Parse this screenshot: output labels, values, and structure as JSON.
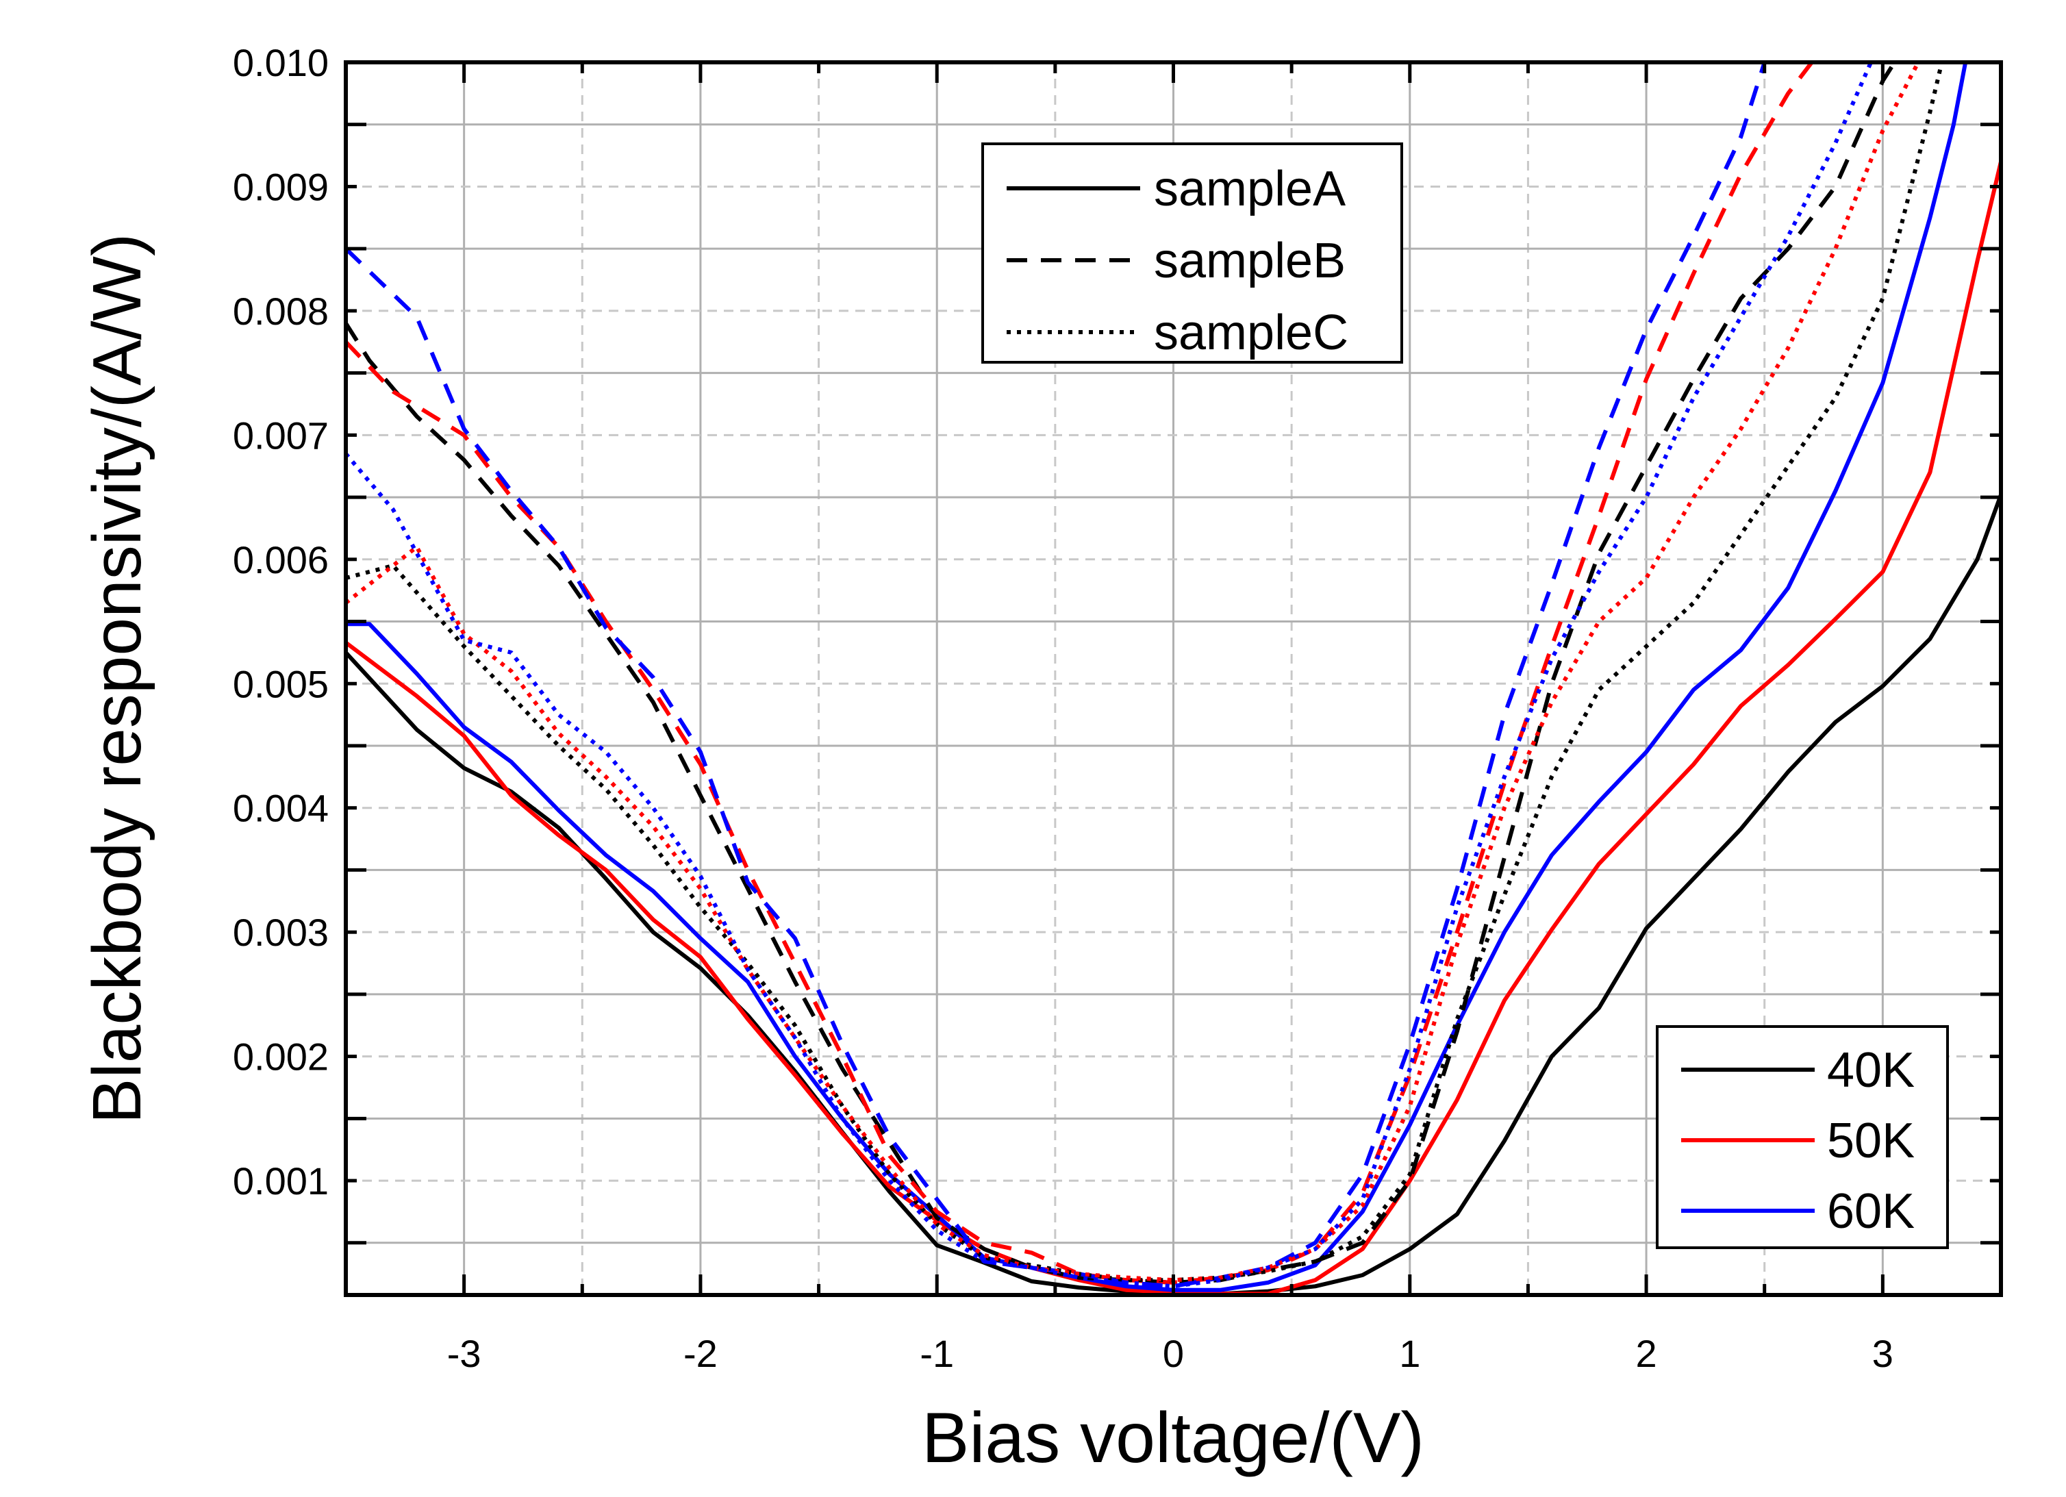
{
  "chart_data": {
    "type": "line",
    "title": "",
    "xlabel": "Bias voltage/(V)",
    "ylabel": "Blackbody responsivity/(A/W)",
    "xlim": [
      -3.5,
      3.5
    ],
    "ylim": [
      8e-05,
      0.01
    ],
    "grid": true,
    "x_ticks": [
      -3,
      -2,
      -1,
      0,
      1,
      2,
      3
    ],
    "x_tick_labels": [
      "-3",
      "-2",
      "-1",
      "0",
      "1",
      "2",
      "3"
    ],
    "y_ticks": [
      0.001,
      0.002,
      0.003,
      0.004,
      0.005,
      0.006,
      0.007,
      0.008,
      0.009,
      0.01
    ],
    "y_tick_labels": [
      "0.001",
      "0.002",
      "0.003",
      "0.004",
      "0.005",
      "0.006",
      "0.007",
      "0.008",
      "0.009",
      "0.010"
    ],
    "legend_style": {
      "position": "top-center",
      "entries": [
        {
          "label": "sampleA",
          "dash": "solid"
        },
        {
          "label": "sampleB",
          "dash": "dashed"
        },
        {
          "label": "sampleC",
          "dash": "dotted"
        }
      ]
    },
    "legend_color": {
      "position": "bottom-right",
      "entries": [
        {
          "label": "40K",
          "color": "#000000"
        },
        {
          "label": "50K",
          "color": "#ff0000"
        },
        {
          "label": "60K",
          "color": "#0000ff"
        }
      ]
    },
    "series": [
      {
        "name": "sampleA 40K",
        "color": "#000000",
        "dash": "solid",
        "x": [
          -3.5,
          -3.2,
          -3,
          -2.8,
          -2.6,
          -2.4,
          -2.2,
          -2,
          -1.8,
          -1.6,
          -1.4,
          -1.2,
          -1,
          -0.8,
          -0.6,
          -0.4,
          -0.2,
          0,
          0.2,
          0.4,
          0.6,
          0.8,
          1,
          1.2,
          1.4,
          1.6,
          1.8,
          2,
          2.2,
          2.4,
          2.6,
          2.8,
          3,
          3.2,
          3.4,
          3.5
        ],
        "y": [
          0.00525,
          0.00463,
          0.00432,
          0.00413,
          0.00384,
          0.00343,
          0.003,
          0.00271,
          0.00233,
          0.00188,
          0.00139,
          0.00091,
          0.00048,
          0.00034,
          0.00019,
          0.00014,
          0.00011,
          0.0001,
          9e-05,
          0.00011,
          0.00015,
          0.00024,
          0.00045,
          0.00073,
          0.00132,
          0.002,
          0.00239,
          0.00303,
          0.00343,
          0.00383,
          0.00429,
          0.00469,
          0.00498,
          0.00536,
          0.006,
          0.00652
        ]
      },
      {
        "name": "sampleA 50K",
        "color": "#ff0000",
        "dash": "solid",
        "x": [
          -3.5,
          -3.2,
          -3,
          -2.8,
          -2.6,
          -2.4,
          -2.2,
          -2,
          -1.8,
          -1.6,
          -1.4,
          -1.2,
          -1,
          -0.8,
          -0.6,
          -0.4,
          -0.2,
          0,
          0.2,
          0.4,
          0.6,
          0.8,
          1,
          1.2,
          1.4,
          1.6,
          1.8,
          2,
          2.2,
          2.4,
          2.6,
          2.8,
          3,
          3.2,
          3.4,
          3.5
        ],
        "y": [
          0.00533,
          0.0049,
          0.00458,
          0.0041,
          0.00378,
          0.0035,
          0.0031,
          0.0028,
          0.0023,
          0.00185,
          0.00138,
          0.00095,
          0.00068,
          0.00045,
          0.0003,
          0.0002,
          0.00012,
          0.0001,
          9e-05,
          9e-05,
          0.0002,
          0.00045,
          0.001,
          0.00165,
          0.00245,
          0.00302,
          0.00355,
          0.00395,
          0.00435,
          0.00482,
          0.00515,
          0.00552,
          0.0059,
          0.0067,
          0.0084,
          0.0092
        ]
      },
      {
        "name": "sampleA 60K",
        "color": "#0000ff",
        "dash": "solid",
        "x": [
          -3.5,
          -3.4,
          -3.2,
          -3,
          -2.8,
          -2.6,
          -2.4,
          -2.2,
          -2,
          -1.8,
          -1.6,
          -1.4,
          -1.2,
          -1,
          -0.8,
          -0.6,
          -0.4,
          -0.2,
          0,
          0.2,
          0.4,
          0.6,
          0.8,
          1,
          1.2,
          1.4,
          1.6,
          1.8,
          2,
          2.2,
          2.4,
          2.6,
          2.8,
          3,
          3.2,
          3.3,
          3.35
        ],
        "y": [
          0.00548,
          0.00548,
          0.00508,
          0.00465,
          0.00437,
          0.00398,
          0.00362,
          0.00333,
          0.00295,
          0.0026,
          0.002,
          0.0015,
          0.00105,
          0.00072,
          0.00038,
          0.0003,
          0.00022,
          0.00015,
          0.00012,
          0.00012,
          0.00018,
          0.00032,
          0.00075,
          0.00145,
          0.00225,
          0.003,
          0.00362,
          0.00405,
          0.00445,
          0.00495,
          0.00527,
          0.00577,
          0.00655,
          0.00742,
          0.00875,
          0.0095,
          0.01
        ]
      },
      {
        "name": "sampleB 40K",
        "color": "#000000",
        "dash": "dashed",
        "x": [
          -3.5,
          -3.4,
          -3.2,
          -3,
          -2.8,
          -2.6,
          -2.4,
          -2.2,
          -2,
          -1.8,
          -1.6,
          -1.4,
          -1.2,
          -1,
          -0.8,
          -0.6,
          -0.4,
          -0.2,
          0,
          0.2,
          0.4,
          0.6,
          0.8,
          1,
          1.2,
          1.4,
          1.6,
          1.8,
          2,
          2.2,
          2.4,
          2.6,
          2.8,
          3,
          3.05
        ],
        "y": [
          0.0079,
          0.0076,
          0.00715,
          0.0068,
          0.00635,
          0.00595,
          0.0054,
          0.00485,
          0.0041,
          0.00335,
          0.0026,
          0.0019,
          0.0013,
          0.0007,
          0.00045,
          0.0003,
          0.00022,
          0.0002,
          0.00018,
          0.0002,
          0.00028,
          0.00035,
          0.0005,
          0.001,
          0.0022,
          0.0036,
          0.005,
          0.00605,
          0.00675,
          0.00745,
          0.0081,
          0.0085,
          0.009,
          0.00985,
          0.01
        ]
      },
      {
        "name": "sampleB 50K",
        "color": "#ff0000",
        "dash": "dashed",
        "x": [
          -3.5,
          -3.3,
          -3,
          -2.8,
          -2.6,
          -2.4,
          -2.2,
          -2,
          -1.8,
          -1.6,
          -1.4,
          -1.2,
          -1,
          -0.8,
          -0.6,
          -0.4,
          -0.2,
          0,
          0.2,
          0.4,
          0.6,
          0.8,
          1,
          1.2,
          1.4,
          1.6,
          1.8,
          2,
          2.2,
          2.4,
          2.6,
          2.7
        ],
        "y": [
          0.00775,
          0.00735,
          0.007,
          0.0065,
          0.0061,
          0.0055,
          0.00495,
          0.00435,
          0.0035,
          0.00275,
          0.002,
          0.0012,
          0.00075,
          0.0005,
          0.00042,
          0.00025,
          0.0002,
          0.00018,
          0.00022,
          0.00028,
          0.00045,
          0.0009,
          0.00185,
          0.003,
          0.0042,
          0.0053,
          0.00635,
          0.00745,
          0.0083,
          0.0091,
          0.00975,
          0.01
        ]
      },
      {
        "name": "sampleB 60K",
        "color": "#0000ff",
        "dash": "dashed",
        "x": [
          -3.5,
          -3.2,
          -3,
          -2.8,
          -2.6,
          -2.4,
          -2.2,
          -2,
          -1.8,
          -1.6,
          -1.4,
          -1.2,
          -1,
          -0.8,
          -0.6,
          -0.4,
          -0.2,
          0,
          0.2,
          0.4,
          0.6,
          0.8,
          1,
          1.2,
          1.4,
          1.6,
          1.8,
          2,
          2.2,
          2.4,
          2.5
        ],
        "y": [
          0.0085,
          0.00795,
          0.00705,
          0.00655,
          0.0061,
          0.00545,
          0.00505,
          0.00445,
          0.0034,
          0.00295,
          0.0021,
          0.00135,
          0.00085,
          0.00035,
          0.0003,
          0.00025,
          0.00018,
          0.00015,
          0.00022,
          0.0003,
          0.0005,
          0.00105,
          0.0021,
          0.00335,
          0.00475,
          0.0058,
          0.0069,
          0.00785,
          0.0086,
          0.0094,
          0.01
        ]
      },
      {
        "name": "sampleC 40K",
        "color": "#000000",
        "dash": "dotted",
        "x": [
          -3.5,
          -3.3,
          -3,
          -2.8,
          -2.6,
          -2.4,
          -2.2,
          -2,
          -1.8,
          -1.6,
          -1.4,
          -1.2,
          -1,
          -0.8,
          -0.6,
          -0.4,
          -0.2,
          0,
          0.2,
          0.4,
          0.6,
          0.8,
          1,
          1.2,
          1.4,
          1.6,
          1.8,
          2,
          2.2,
          2.4,
          2.6,
          2.8,
          3,
          3.2,
          3.25
        ],
        "y": [
          0.00585,
          0.00595,
          0.0053,
          0.0049,
          0.0045,
          0.00415,
          0.0037,
          0.0032,
          0.00275,
          0.00225,
          0.0016,
          0.00105,
          0.00065,
          0.00038,
          0.00032,
          0.00025,
          0.0002,
          0.0002,
          0.00022,
          0.00027,
          0.00035,
          0.00055,
          0.00105,
          0.0023,
          0.0033,
          0.00425,
          0.00495,
          0.0053,
          0.00565,
          0.0062,
          0.00675,
          0.0073,
          0.0081,
          0.0096,
          0.01
        ]
      },
      {
        "name": "sampleC 50K",
        "color": "#ff0000",
        "dash": "dotted",
        "x": [
          -3.5,
          -3.2,
          -3,
          -2.8,
          -2.6,
          -2.4,
          -2.2,
          -2,
          -1.8,
          -1.6,
          -1.4,
          -1.2,
          -1,
          -0.8,
          -0.6,
          -0.4,
          -0.2,
          0,
          0.2,
          0.4,
          0.6,
          0.8,
          1,
          1.2,
          1.4,
          1.6,
          1.8,
          2,
          2.2,
          2.4,
          2.6,
          2.8,
          3,
          3.15
        ],
        "y": [
          0.00565,
          0.0061,
          0.0054,
          0.0051,
          0.0046,
          0.00425,
          0.00385,
          0.00335,
          0.0027,
          0.00215,
          0.0016,
          0.0011,
          0.00065,
          0.0004,
          0.0003,
          0.00025,
          0.00022,
          0.0002,
          0.00022,
          0.0003,
          0.00045,
          0.0008,
          0.0016,
          0.0029,
          0.004,
          0.00485,
          0.0055,
          0.00585,
          0.0065,
          0.00705,
          0.0077,
          0.0085,
          0.00945,
          0.01
        ]
      },
      {
        "name": "sampleC 60K",
        "color": "#0000ff",
        "dash": "dotted",
        "x": [
          -3.5,
          -3.3,
          -3,
          -2.8,
          -2.6,
          -2.4,
          -2.2,
          -2,
          -1.8,
          -1.6,
          -1.4,
          -1.2,
          -1,
          -0.8,
          -0.6,
          -0.4,
          -0.2,
          0,
          0.2,
          0.4,
          0.6,
          0.8,
          1,
          1.2,
          1.4,
          1.6,
          1.8,
          2,
          2.2,
          2.4,
          2.6,
          2.8,
          2.95
        ],
        "y": [
          0.00685,
          0.0064,
          0.00535,
          0.00525,
          0.00475,
          0.00445,
          0.004,
          0.00345,
          0.0027,
          0.00215,
          0.0015,
          0.001,
          0.0006,
          0.00035,
          0.0003,
          0.00022,
          0.00018,
          0.00015,
          0.0002,
          0.0003,
          0.00045,
          0.00085,
          0.0019,
          0.0032,
          0.00425,
          0.0052,
          0.0059,
          0.0065,
          0.0073,
          0.00795,
          0.0086,
          0.00935,
          0.01
        ]
      }
    ]
  }
}
